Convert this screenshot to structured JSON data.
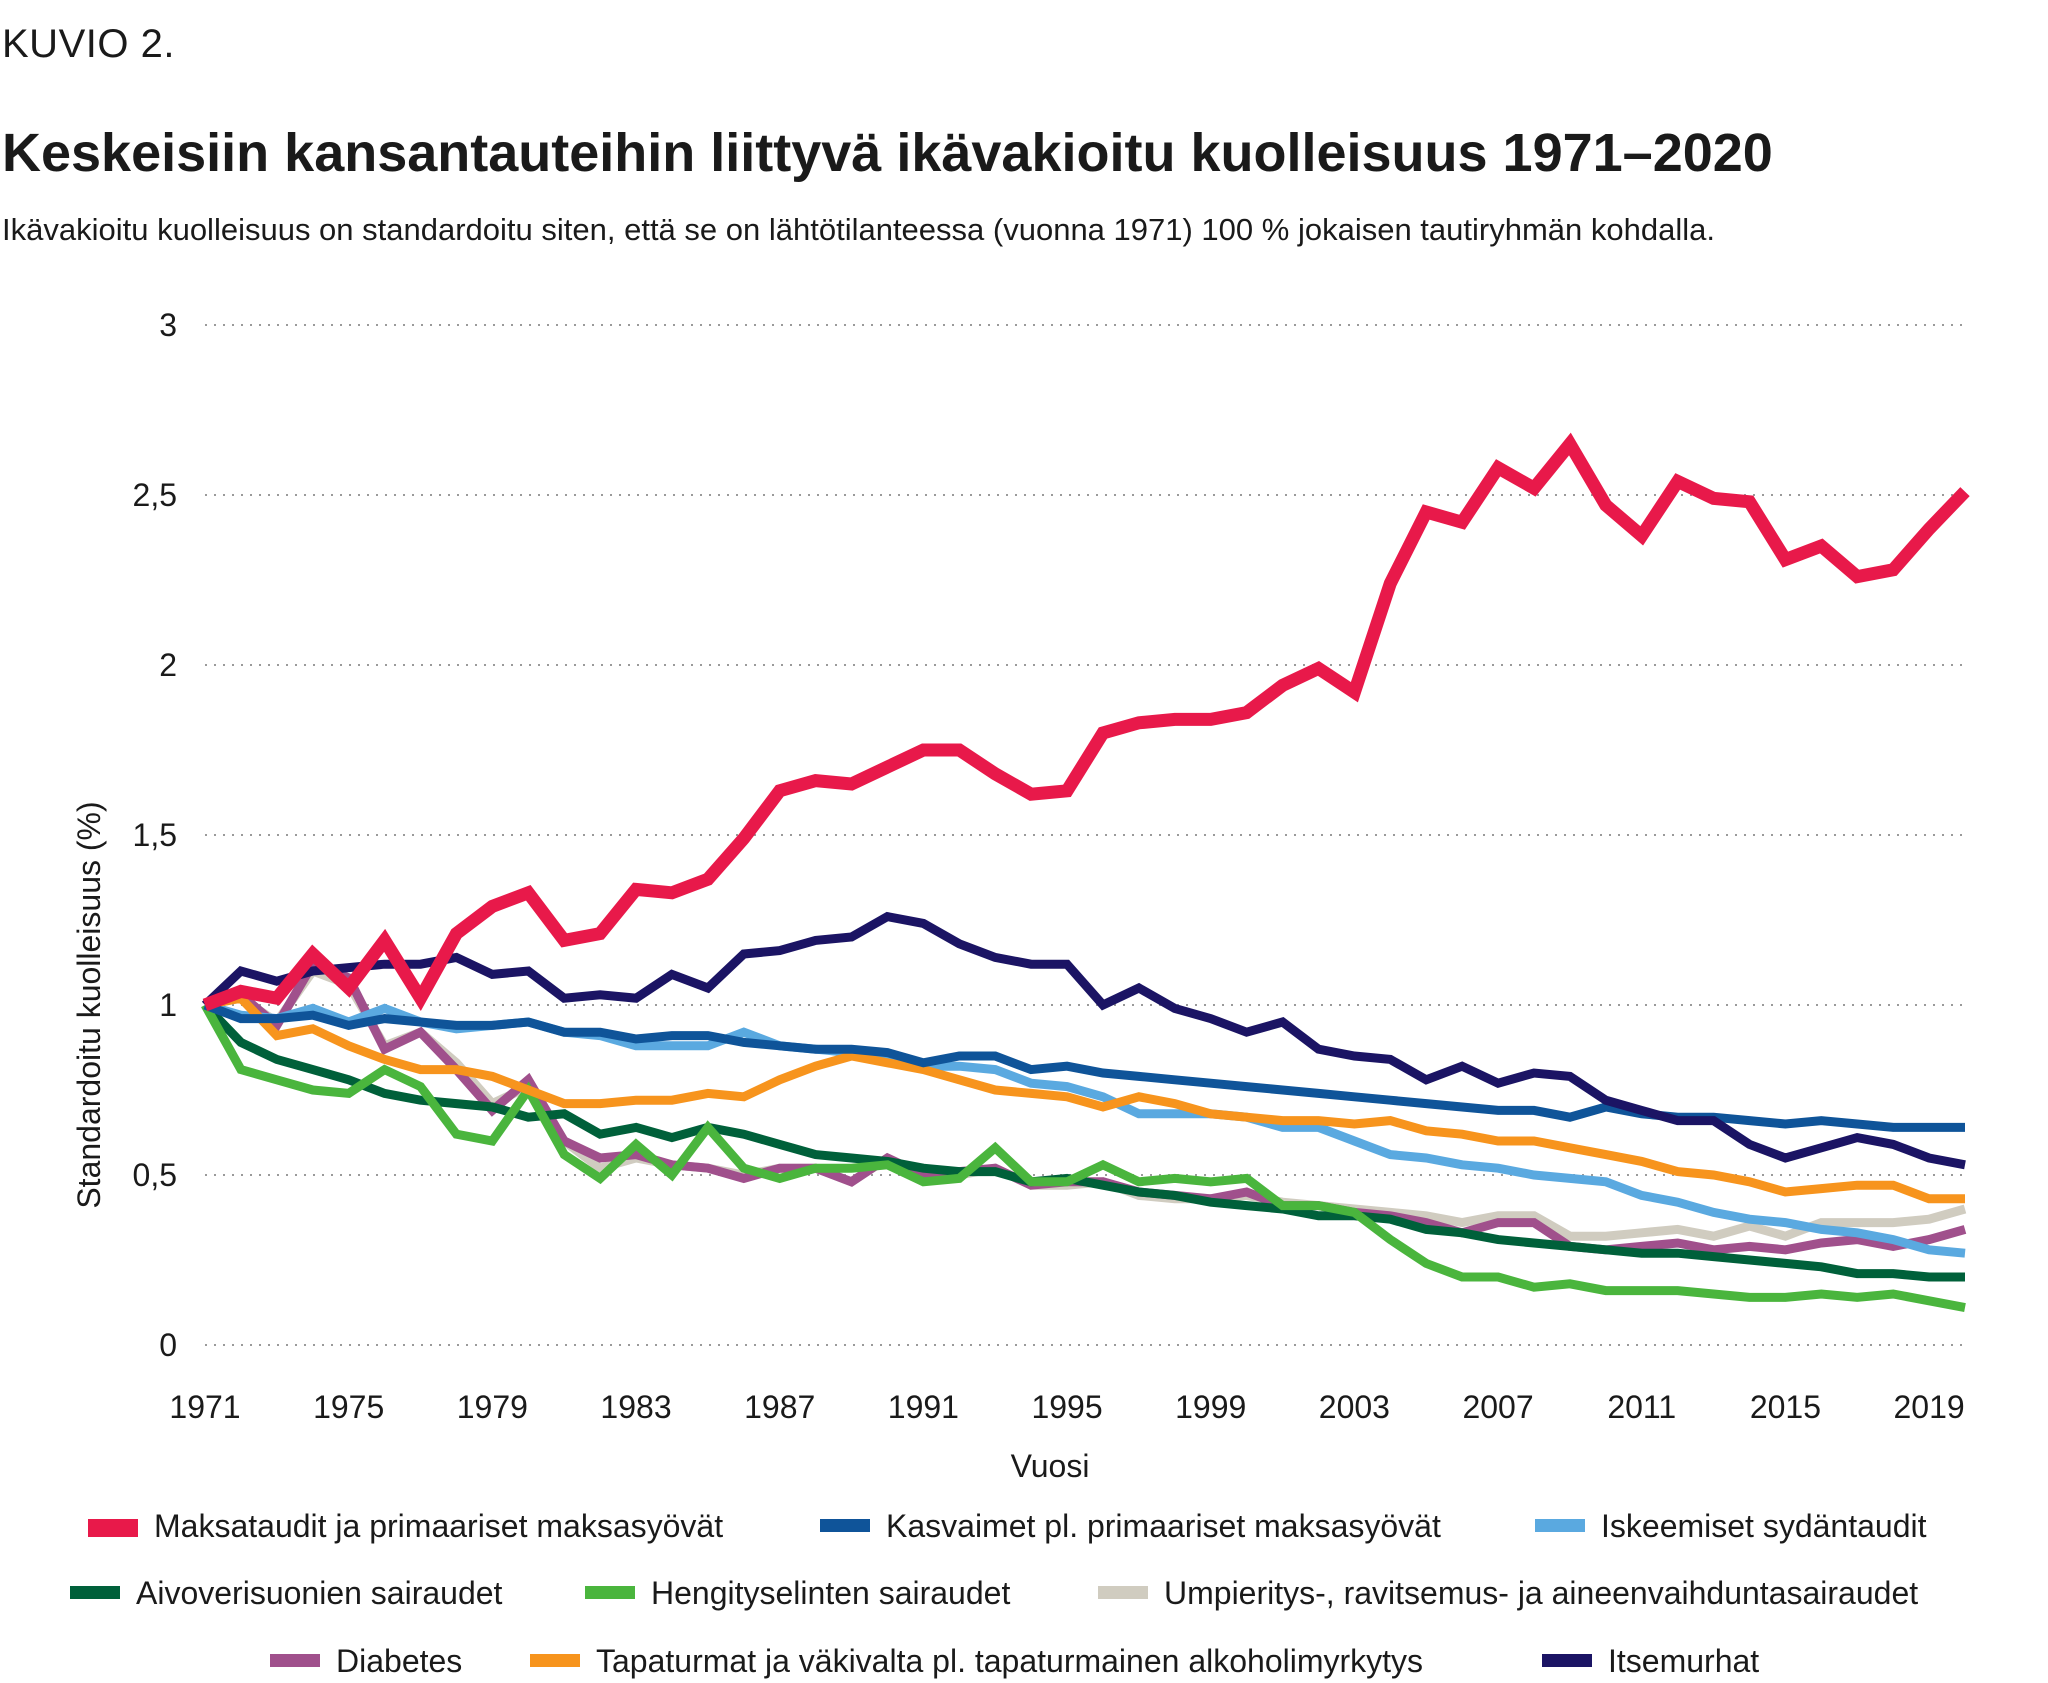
{
  "figure_label": "KUVIO 2.",
  "chart_data": {
    "type": "line",
    "title": "Keskeisiin kansantauteihin liittyvä ikävakioitu kuolleisuus 1971–2020",
    "subtitle": "Ikävakioitu kuolleisuus on standardoitu siten, että se on lähtötilanteessa (vuonna 1971) 100 % jokaisen tautiryhmän kohdalla.",
    "xlabel": "Vuosi",
    "ylabel": "Standardoitu kuolleisuus (%)",
    "xlim": [
      1971,
      2020
    ],
    "ylim": [
      0,
      3
    ],
    "x_ticks": [
      1971,
      1975,
      1979,
      1983,
      1987,
      1991,
      1995,
      1999,
      2003,
      2007,
      2011,
      2015,
      2019
    ],
    "y_ticks": [
      0,
      0.5,
      1,
      1.5,
      2,
      2.5,
      3
    ],
    "y_tick_labels": [
      "0",
      "0,5",
      "1",
      "1,5",
      "2",
      "2,5",
      "3"
    ],
    "grid": "horizontal dotted",
    "legend_position": "bottom",
    "x": [
      1971,
      1972,
      1973,
      1974,
      1975,
      1976,
      1977,
      1978,
      1979,
      1980,
      1981,
      1982,
      1983,
      1984,
      1985,
      1986,
      1987,
      1988,
      1989,
      1990,
      1991,
      1992,
      1993,
      1994,
      1995,
      1996,
      1997,
      1998,
      1999,
      2000,
      2001,
      2002,
      2003,
      2004,
      2005,
      2006,
      2007,
      2008,
      2009,
      2010,
      2011,
      2012,
      2013,
      2014,
      2015,
      2016,
      2017,
      2018,
      2019,
      2020
    ],
    "series": [
      {
        "name": "Maksataudit ja primaariset maksasyövät",
        "color": "#e8194a",
        "values": [
          1.0,
          1.04,
          1.02,
          1.15,
          1.05,
          1.19,
          1.02,
          1.21,
          1.29,
          1.33,
          1.19,
          1.21,
          1.34,
          1.33,
          1.37,
          1.49,
          1.63,
          1.66,
          1.65,
          1.7,
          1.75,
          1.75,
          1.68,
          1.62,
          1.63,
          1.8,
          1.83,
          1.84,
          1.84,
          1.86,
          1.94,
          1.99,
          1.92,
          2.24,
          2.45,
          2.42,
          2.58,
          2.52,
          2.65,
          2.47,
          2.38,
          2.54,
          2.49,
          2.48,
          2.31,
          2.35,
          2.26,
          2.28,
          2.4,
          2.51
        ]
      },
      {
        "name": "Kasvaimet pl. primaariset maksasyövät",
        "color": "#0f5499",
        "values": [
          1.0,
          0.96,
          0.96,
          0.97,
          0.94,
          0.96,
          0.95,
          0.94,
          0.94,
          0.95,
          0.92,
          0.92,
          0.9,
          0.91,
          0.91,
          0.89,
          0.88,
          0.87,
          0.87,
          0.86,
          0.83,
          0.85,
          0.85,
          0.81,
          0.82,
          0.8,
          0.79,
          0.78,
          0.77,
          0.76,
          0.75,
          0.74,
          0.73,
          0.72,
          0.71,
          0.7,
          0.69,
          0.69,
          0.67,
          0.7,
          0.68,
          0.67,
          0.67,
          0.66,
          0.65,
          0.66,
          0.65,
          0.64,
          0.64,
          0.64
        ]
      },
      {
        "name": "Iskeemiset sydäntaudit",
        "color": "#5aa9e0",
        "values": [
          1.0,
          0.97,
          0.96,
          0.99,
          0.95,
          0.99,
          0.95,
          0.93,
          0.94,
          0.95,
          0.92,
          0.91,
          0.88,
          0.88,
          0.88,
          0.92,
          0.88,
          0.87,
          0.86,
          0.85,
          0.82,
          0.82,
          0.81,
          0.77,
          0.76,
          0.73,
          0.68,
          0.68,
          0.68,
          0.67,
          0.64,
          0.64,
          0.6,
          0.56,
          0.55,
          0.53,
          0.52,
          0.5,
          0.49,
          0.48,
          0.44,
          0.42,
          0.39,
          0.37,
          0.36,
          0.34,
          0.33,
          0.31,
          0.28,
          0.27
        ]
      },
      {
        "name": "Aivoverisuonien sairaudet",
        "color": "#00603a",
        "values": [
          1.0,
          0.89,
          0.84,
          0.81,
          0.78,
          0.74,
          0.72,
          0.71,
          0.7,
          0.67,
          0.68,
          0.62,
          0.64,
          0.61,
          0.64,
          0.62,
          0.59,
          0.56,
          0.55,
          0.54,
          0.52,
          0.51,
          0.51,
          0.48,
          0.49,
          0.47,
          0.45,
          0.44,
          0.42,
          0.41,
          0.4,
          0.38,
          0.38,
          0.37,
          0.34,
          0.33,
          0.31,
          0.3,
          0.29,
          0.28,
          0.27,
          0.27,
          0.26,
          0.25,
          0.24,
          0.23,
          0.21,
          0.21,
          0.2,
          0.2
        ]
      },
      {
        "name": "Hengityselinten sairaudet",
        "color": "#4ab53d",
        "values": [
          1.0,
          0.81,
          0.78,
          0.75,
          0.74,
          0.81,
          0.76,
          0.62,
          0.6,
          0.75,
          0.56,
          0.49,
          0.59,
          0.5,
          0.64,
          0.52,
          0.49,
          0.52,
          0.52,
          0.53,
          0.48,
          0.49,
          0.58,
          0.48,
          0.48,
          0.53,
          0.48,
          0.49,
          0.48,
          0.49,
          0.41,
          0.41,
          0.39,
          0.31,
          0.24,
          0.2,
          0.2,
          0.17,
          0.18,
          0.16,
          0.16,
          0.16,
          0.15,
          0.14,
          0.14,
          0.15,
          0.14,
          0.15,
          0.13,
          0.11
        ]
      },
      {
        "name": "Umpieritys-, ravitsemus- ja aineenvaihduntasairaudet",
        "color": "#d0ccc0",
        "values": [
          1.0,
          1.02,
          0.95,
          1.1,
          1.06,
          0.88,
          0.92,
          0.83,
          0.71,
          0.76,
          0.6,
          0.52,
          0.55,
          0.53,
          0.52,
          0.5,
          0.52,
          0.52,
          0.48,
          0.55,
          0.5,
          0.5,
          0.52,
          0.47,
          0.47,
          0.48,
          0.44,
          0.43,
          0.43,
          0.44,
          0.42,
          0.41,
          0.4,
          0.39,
          0.38,
          0.36,
          0.38,
          0.38,
          0.32,
          0.32,
          0.33,
          0.34,
          0.32,
          0.35,
          0.32,
          0.36,
          0.36,
          0.36,
          0.37,
          0.4
        ]
      },
      {
        "name": "Diabetes",
        "color": "#a0508c",
        "values": [
          1.0,
          1.03,
          0.94,
          1.12,
          1.08,
          0.87,
          0.92,
          0.81,
          0.69,
          0.78,
          0.6,
          0.55,
          0.56,
          0.53,
          0.52,
          0.49,
          0.52,
          0.52,
          0.48,
          0.55,
          0.5,
          0.51,
          0.52,
          0.47,
          0.48,
          0.48,
          0.45,
          0.44,
          0.43,
          0.45,
          0.41,
          0.41,
          0.39,
          0.38,
          0.36,
          0.33,
          0.36,
          0.36,
          0.29,
          0.28,
          0.29,
          0.3,
          0.28,
          0.29,
          0.28,
          0.3,
          0.31,
          0.29,
          0.31,
          0.34
        ]
      },
      {
        "name": "Tapaturmat ja väkivalta pl. tapaturmainen alkoholimyrkytys",
        "color": "#f7941d",
        "values": [
          1.0,
          1.02,
          0.91,
          0.93,
          0.88,
          0.84,
          0.81,
          0.81,
          0.79,
          0.75,
          0.71,
          0.71,
          0.72,
          0.72,
          0.74,
          0.73,
          0.78,
          0.82,
          0.85,
          0.83,
          0.81,
          0.78,
          0.75,
          0.74,
          0.73,
          0.7,
          0.73,
          0.71,
          0.68,
          0.67,
          0.66,
          0.66,
          0.65,
          0.66,
          0.63,
          0.62,
          0.6,
          0.6,
          0.58,
          0.56,
          0.54,
          0.51,
          0.5,
          0.48,
          0.45,
          0.46,
          0.47,
          0.47,
          0.43,
          0.43
        ]
      },
      {
        "name": "Itsemurhat",
        "color": "#1b1464",
        "values": [
          1.0,
          1.1,
          1.07,
          1.1,
          1.11,
          1.12,
          1.12,
          1.14,
          1.09,
          1.1,
          1.02,
          1.03,
          1.02,
          1.09,
          1.05,
          1.15,
          1.16,
          1.19,
          1.2,
          1.26,
          1.24,
          1.18,
          1.14,
          1.12,
          1.12,
          1.0,
          1.05,
          0.99,
          0.96,
          0.92,
          0.95,
          0.87,
          0.85,
          0.84,
          0.78,
          0.82,
          0.77,
          0.8,
          0.79,
          0.72,
          0.69,
          0.66,
          0.66,
          0.59,
          0.55,
          0.58,
          0.61,
          0.59,
          0.55,
          0.53
        ]
      }
    ]
  }
}
